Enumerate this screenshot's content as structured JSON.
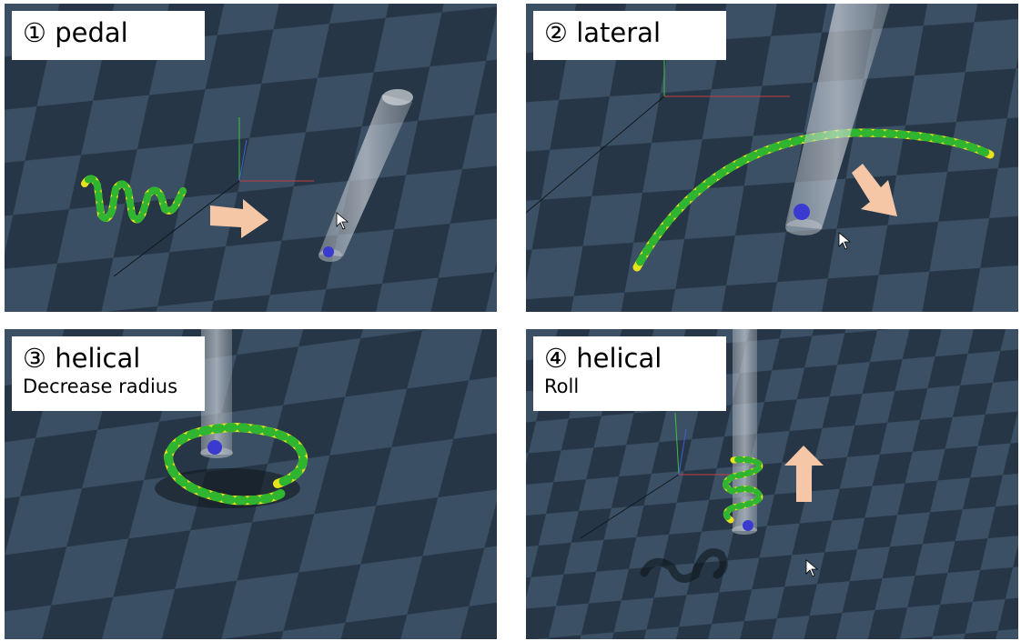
{
  "panels": [
    {
      "title": "① pedal",
      "subtitle": ""
    },
    {
      "title": "② lateral",
      "subtitle": ""
    },
    {
      "title": "③ helical",
      "subtitle": "Decrease radius"
    },
    {
      "title": "④ helical",
      "subtitle": "Roll"
    }
  ],
  "colors": {
    "floor_dark": "#263646",
    "floor_light": "#3c5166",
    "snake_yellow": "#e8e21c",
    "snake_green": "#2fb52f",
    "arrow": "#f6c7a6",
    "pole": "#c8ccd2",
    "target": "#3a3ad0"
  },
  "icons": [
    "arrow-right-icon",
    "arrow-down-right-icon",
    "arrow-up-icon",
    "cursor-icon"
  ]
}
